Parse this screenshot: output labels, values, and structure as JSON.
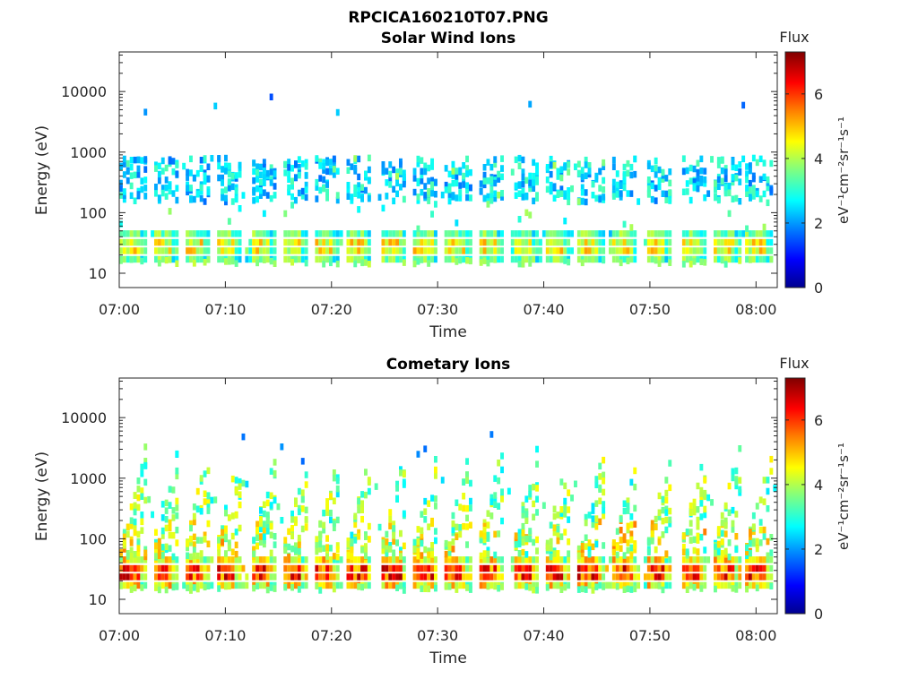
{
  "figure": {
    "title": "RPCICA160210T07.PNG"
  },
  "colors": {
    "axis": "#262626",
    "background": "#ffffff",
    "colormap": [
      "#00008f",
      "#0000ff",
      "#0080ff",
      "#00ffff",
      "#80ff80",
      "#ffff00",
      "#ff8000",
      "#ff0000",
      "#800000"
    ]
  },
  "chart_data": [
    {
      "type": "heatmap",
      "title": "Solar Wind Ions",
      "xlabel": "Time",
      "ylabel": "Energy (eV)",
      "y_scale": "log",
      "ylim": [
        5.8,
        45000
      ],
      "yticks": [
        10,
        100,
        1000,
        10000
      ],
      "ytick_labels": [
        "10",
        "100",
        "1000",
        "10000"
      ],
      "x_range": [
        "07:00",
        "08:02"
      ],
      "xtick_labels": [
        "07:00",
        "07:10",
        "07:20",
        "07:30",
        "07:40",
        "07:50",
        "08:00"
      ],
      "colorbar": {
        "title": "Flux",
        "label": "eV⁻¹cm⁻²sr⁻¹s⁻¹",
        "range": [
          0,
          7.3
        ],
        "ticks": [
          0,
          2,
          4,
          6
        ],
        "tick_labels": [
          "0",
          "2",
          "4",
          "6"
        ]
      },
      "structure": {
        "burst_period_min": 3.2,
        "burst_starts_min": [
          0,
          3,
          6,
          9,
          12.3,
          15.3,
          18.3,
          21.3,
          24.6,
          27.6,
          30.6,
          33.7,
          37,
          40,
          43.2,
          46.4,
          49.6,
          52.8,
          56,
          59
        ],
        "low_energy_band_eV": [
          17,
          45
        ],
        "low_energy_band_flux": 4.8,
        "secondary_band_eV": [
          150,
          800
        ],
        "secondary_band_flux": 2.8,
        "max_energy_eV": 8500
      }
    },
    {
      "type": "heatmap",
      "title": "Cometary Ions",
      "xlabel": "Time",
      "ylabel": "Energy (eV)",
      "y_scale": "log",
      "ylim": [
        5.8,
        45000
      ],
      "yticks": [
        10,
        100,
        1000,
        10000
      ],
      "ytick_labels": [
        "10",
        "100",
        "1000",
        "10000"
      ],
      "x_range": [
        "07:00",
        "08:02"
      ],
      "xtick_labels": [
        "07:00",
        "07:10",
        "07:20",
        "07:30",
        "07:40",
        "07:50",
        "08:00"
      ],
      "colorbar": {
        "title": "Flux",
        "label": "eV⁻¹cm⁻²sr⁻¹s⁻¹",
        "range": [
          0,
          7.3
        ],
        "ticks": [
          0,
          2,
          4,
          6
        ],
        "tick_labels": [
          "0",
          "2",
          "4",
          "6"
        ]
      },
      "structure": {
        "burst_period_min": 3.2,
        "burst_starts_min": [
          0,
          3,
          6,
          9,
          12.3,
          15.3,
          18.3,
          21.3,
          24.6,
          27.6,
          30.6,
          33.7,
          37,
          40,
          43.2,
          46.4,
          49.6,
          52.8,
          56,
          59
        ],
        "low_energy_band_eV": [
          17,
          45
        ],
        "low_energy_band_flux": 6.4,
        "rising_streak_top_eV": 2500,
        "rising_streak_flux": 3.6,
        "max_energy_eV": 8000
      }
    }
  ]
}
